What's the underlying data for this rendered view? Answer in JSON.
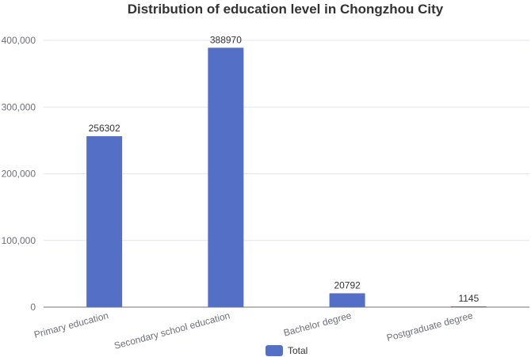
{
  "chart_data": {
    "type": "bar",
    "title": "Distribution of education level in Chongzhou City",
    "categories": [
      "Primary education",
      "Secondary school education",
      "Bachelor degree",
      "Postgraduate degree"
    ],
    "series": [
      {
        "name": "Total",
        "values": [
          256302,
          388970,
          20792,
          1145
        ],
        "color": "#5470c6"
      }
    ],
    "ylim": [
      0,
      400000
    ],
    "yticks": [
      0,
      100000,
      200000,
      300000,
      400000
    ],
    "ytick_labels": [
      "0",
      "100,000",
      "200,000",
      "300,000",
      "400,000"
    ],
    "grid": true,
    "legend_position": "bottom"
  }
}
